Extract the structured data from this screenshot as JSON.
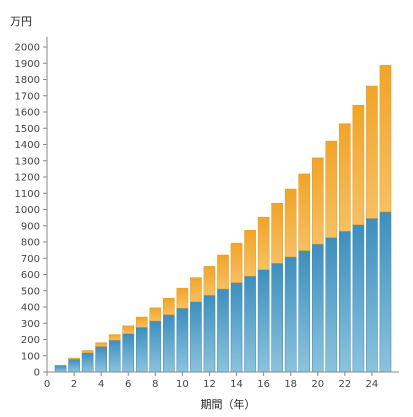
{
  "chart_data": {
    "type": "bar",
    "stacked": true,
    "ylabel": "万円",
    "xlabel": "期間（年）",
    "ylim": [
      0,
      2000
    ],
    "yticks": [
      0,
      100,
      200,
      300,
      400,
      500,
      600,
      700,
      800,
      900,
      1000,
      1100,
      1200,
      1300,
      1400,
      1500,
      1600,
      1700,
      1800,
      1900,
      2000
    ],
    "xlim": [
      0,
      26
    ],
    "xticks": [
      0,
      2,
      4,
      6,
      8,
      10,
      12,
      14,
      16,
      18,
      20,
      22,
      24
    ],
    "x": [
      1,
      2,
      3,
      4,
      5,
      6,
      7,
      8,
      9,
      10,
      11,
      12,
      13,
      14,
      15,
      16,
      17,
      18,
      19,
      20,
      21,
      22,
      23,
      24,
      25
    ],
    "grid": false,
    "series": [
      {
        "values": [
          40,
          79,
          118,
          157,
          196,
          236,
          275,
          314,
          353,
          392,
          432,
          472,
          511,
          550,
          590,
          630,
          669,
          708,
          747,
          787,
          827,
          866,
          906,
          945,
          985
        ],
        "color": "#4a9cc7"
      },
      {
        "values": [
          2,
          7,
          14,
          23,
          34,
          48,
          63,
          81,
          101,
          124,
          149,
          178,
          209,
          243,
          282,
          323,
          369,
          418,
          472,
          531,
          594,
          662,
          736,
          815,
          902
        ],
        "color": "#f2aa33"
      }
    ]
  }
}
